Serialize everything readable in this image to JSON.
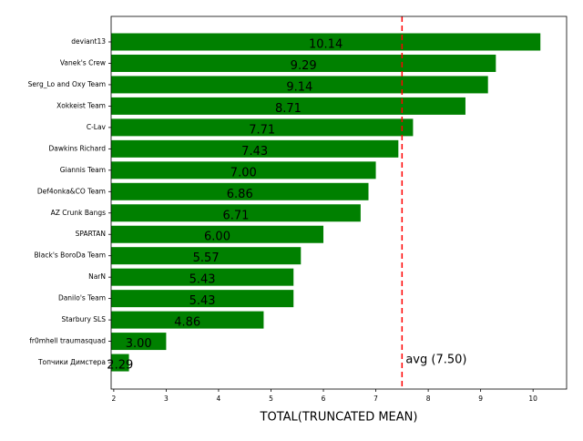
{
  "chart_data": {
    "type": "barh",
    "x_label": "TOTAL(TRUNCATED MEAN)",
    "categories": [
      "deviant13",
      "Vanek's Crew",
      "Serg_Lo and Oxy Team",
      "Xokkeist Team",
      "C-Lav",
      "Dawkins Richard",
      "Giannis Team",
      "Def4onka&CO Team",
      "AZ Crunk Bangs",
      "SPARTAN",
      "Black's BoroDa Team",
      "NarN",
      "Danilo's Team",
      "Starbury SLS",
      "fr0mhell traumasquad",
      "Топчики Димстера"
    ],
    "values": [
      10.14,
      9.29,
      9.14,
      8.71,
      7.71,
      7.43,
      7.0,
      6.86,
      6.71,
      6.0,
      5.57,
      5.43,
      5.43,
      4.86,
      3.0,
      2.29
    ],
    "value_labels": [
      "10.14",
      "9.29",
      "9.14",
      "8.71",
      "7.71",
      "7.43",
      "7.00",
      "6.86",
      "6.71",
      "6.00",
      "5.57",
      "5.43",
      "5.43",
      "4.86",
      "3.00",
      "2.29"
    ],
    "color": "#008000",
    "xlim": [
      1.95,
      10.64
    ],
    "xticks": [
      2,
      3,
      4,
      5,
      6,
      7,
      8,
      9,
      10
    ],
    "avg_line": {
      "value": 7.5,
      "color": "#ff0000",
      "label": "avg (7.50)"
    }
  }
}
